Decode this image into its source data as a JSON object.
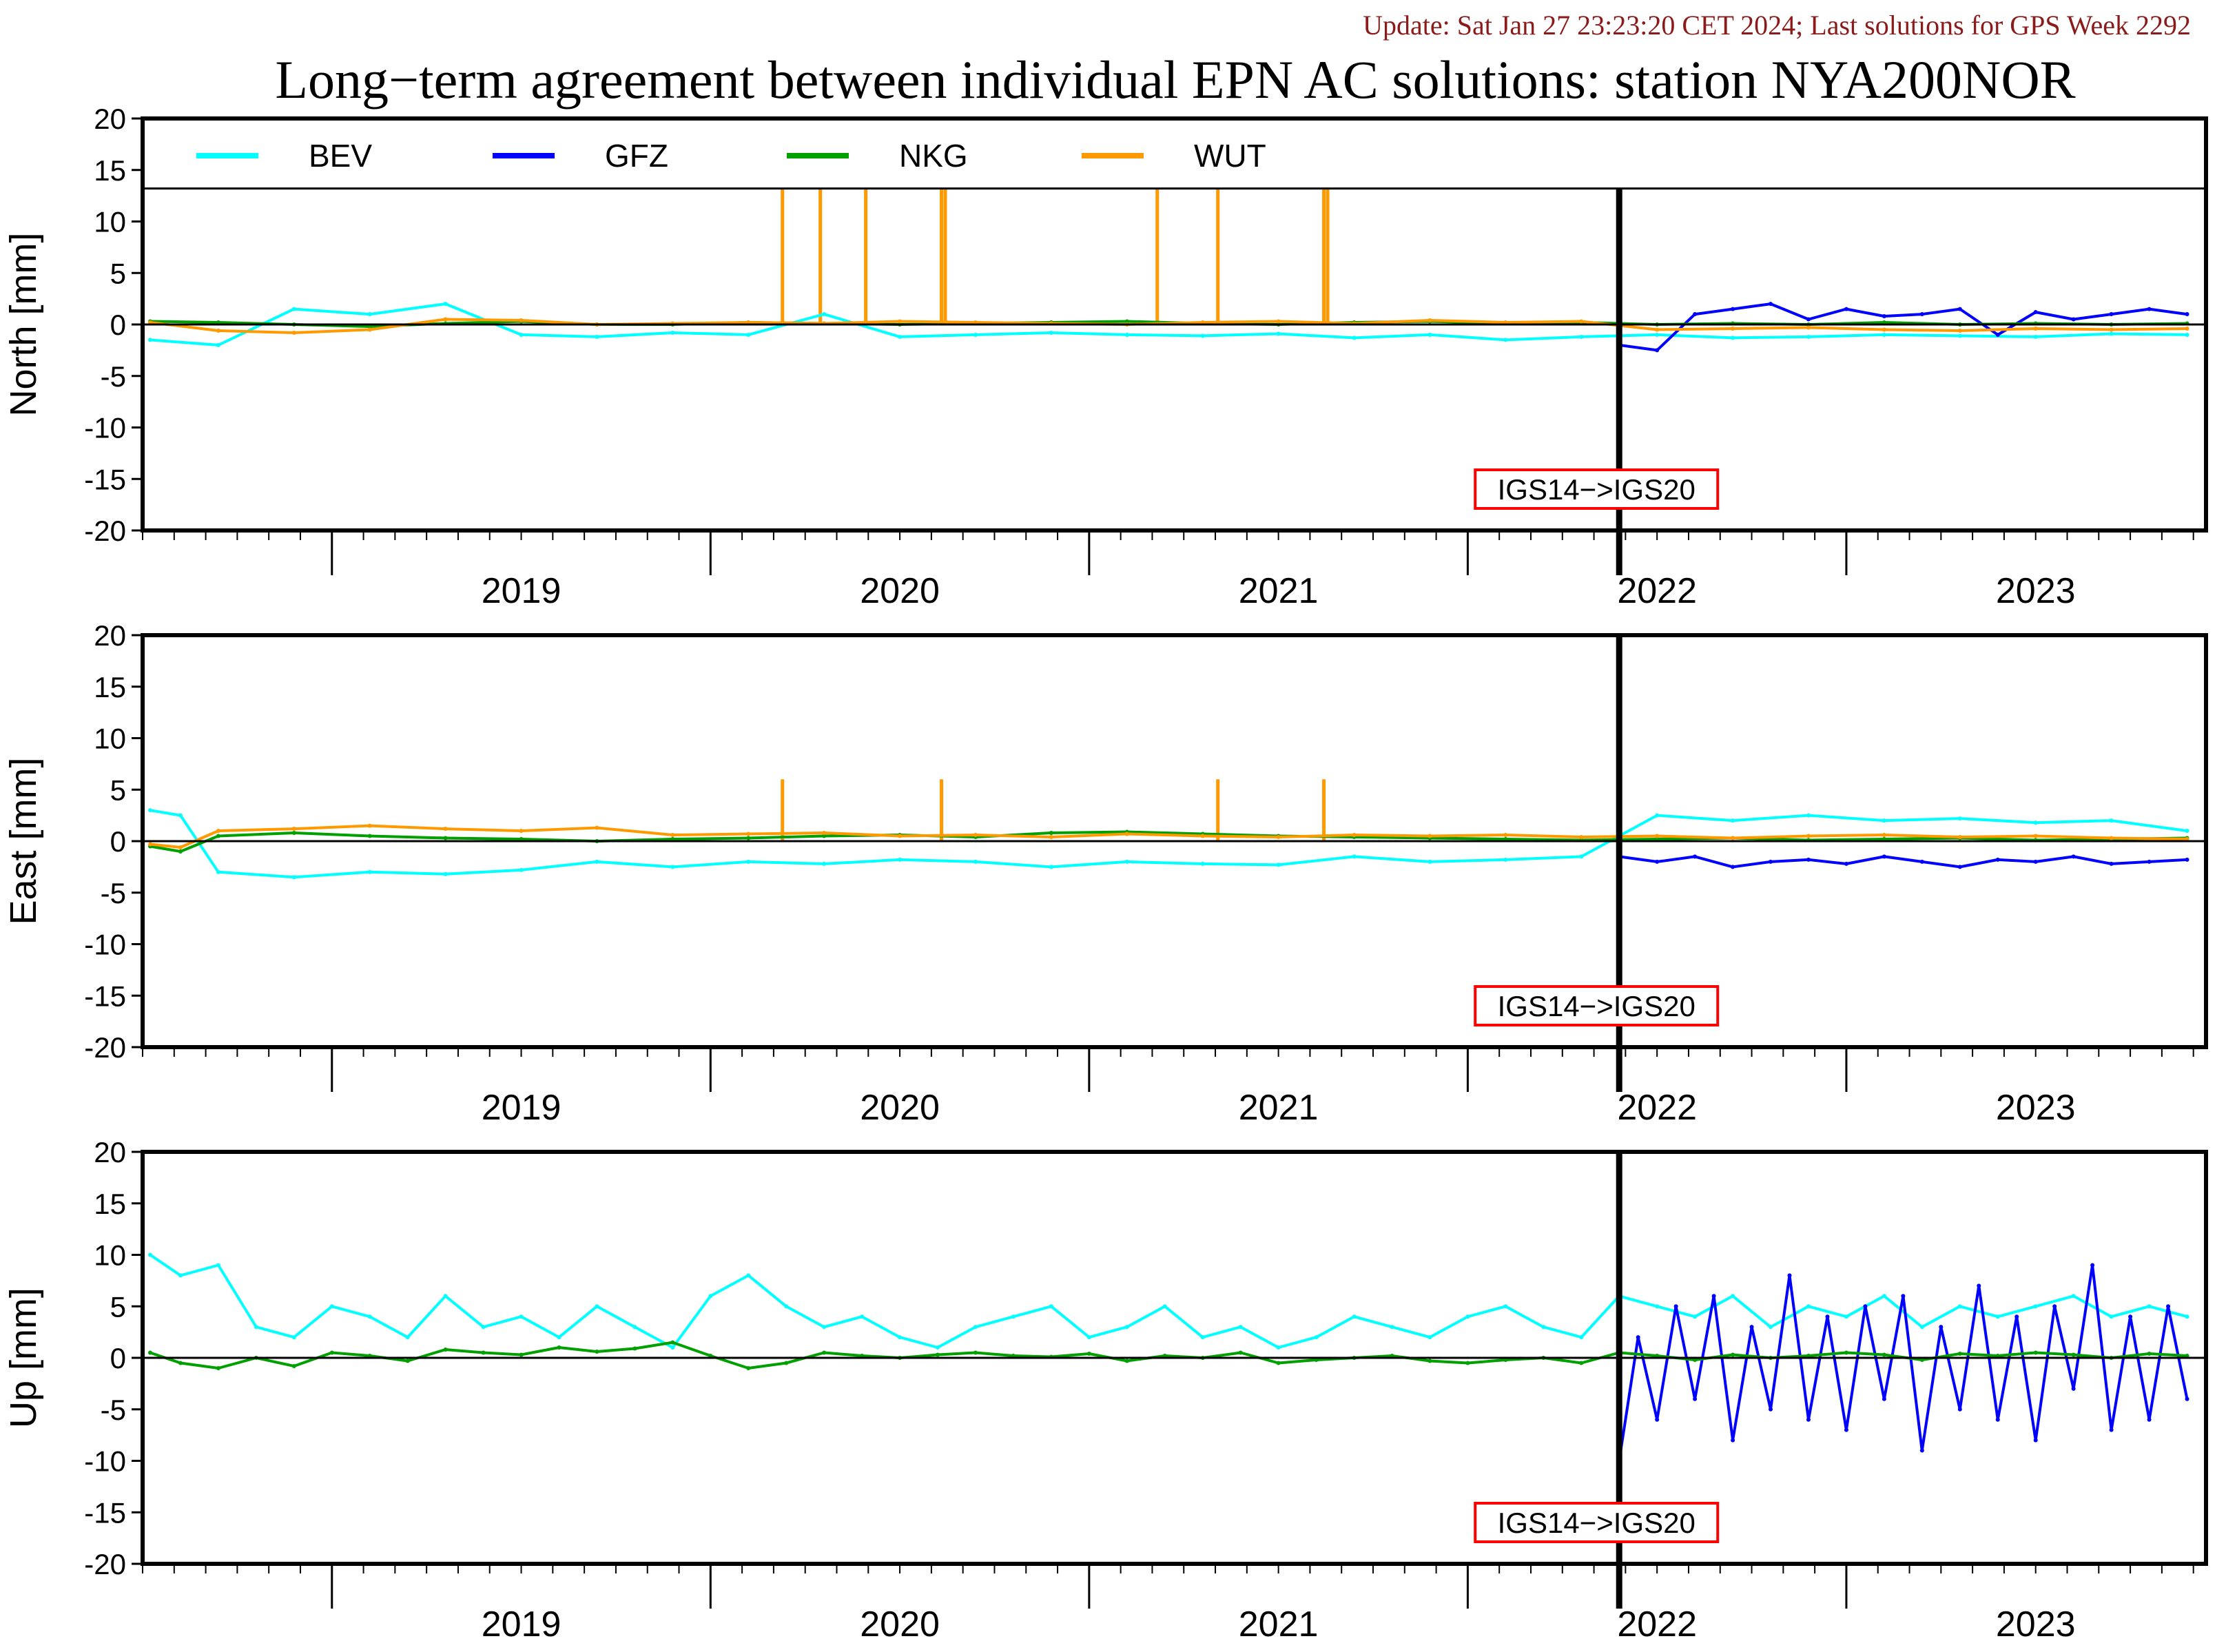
{
  "header": {
    "update_text": "Update: Sat Jan 27 23:23:20 CET 2024; Last solutions for GPS Week 2292",
    "title": "Long−term agreement between individual EPN AC solutions: station NYA200NOR"
  },
  "colors": {
    "BEV": "#00ffff",
    "GFZ": "#0000ff",
    "NKG": "#00a000",
    "WUT": "#ff9900",
    "annotation_border": "#ff0000",
    "update_text": "#8b1a1a"
  },
  "chart_data": [
    {
      "type": "line",
      "panel": "north",
      "ylabel": "North [mm]",
      "ylim": [
        -20,
        20
      ],
      "yticks": [
        20,
        15,
        10,
        5,
        0,
        -5,
        -10,
        -15,
        -20
      ],
      "xlim": [
        2018.5,
        2023.95
      ],
      "x_tick_labels": [
        "2019",
        "2020",
        "2021",
        "2022",
        "2023"
      ],
      "x_label_positions": [
        2019,
        2020,
        2021,
        2022,
        2023
      ],
      "reference_line": 0,
      "frame_change": {
        "x": 2022.4,
        "label": "IGS14−>IGS20"
      },
      "legend": {
        "placement": "top-inside",
        "entries": [
          "BEV",
          "GFZ",
          "NKG",
          "WUT"
        ]
      },
      "series": [
        {
          "name": "BEV",
          "x": [
            2018.52,
            2018.7,
            2018.9,
            2019.1,
            2019.3,
            2019.5,
            2019.7,
            2019.9,
            2020.1,
            2020.3,
            2020.5,
            2020.7,
            2020.9,
            2021.1,
            2021.3,
            2021.5,
            2021.7,
            2021.9,
            2022.1,
            2022.3,
            2022.5,
            2022.7,
            2022.9,
            2023.1,
            2023.3,
            2023.5,
            2023.7,
            2023.9
          ],
          "y": [
            -1.5,
            -2.0,
            1.5,
            1.0,
            2.0,
            -1.0,
            -1.2,
            -0.8,
            -1.0,
            1.0,
            -1.2,
            -1.0,
            -0.8,
            -1.0,
            -1.1,
            -0.9,
            -1.3,
            -1.0,
            -1.5,
            -1.2,
            -1.0,
            -1.3,
            -1.2,
            -1.0,
            -1.1,
            -1.2,
            -0.9,
            -1.0
          ]
        },
        {
          "name": "GFZ",
          "x": [
            2022.4,
            2022.5,
            2022.6,
            2022.7,
            2022.8,
            2022.9,
            2023.0,
            2023.1,
            2023.2,
            2023.3,
            2023.4,
            2023.5,
            2023.6,
            2023.7,
            2023.8,
            2023.9
          ],
          "y": [
            -2.0,
            -2.5,
            1.0,
            1.5,
            2.0,
            0.5,
            1.5,
            0.8,
            1.0,
            1.5,
            -1.0,
            1.2,
            0.5,
            1.0,
            1.5,
            1.0
          ]
        },
        {
          "name": "NKG",
          "x": [
            2018.52,
            2018.7,
            2018.9,
            2019.1,
            2019.3,
            2019.5,
            2019.7,
            2019.9,
            2020.1,
            2020.3,
            2020.5,
            2020.7,
            2020.9,
            2021.1,
            2021.3,
            2021.5,
            2021.7,
            2021.9,
            2022.1,
            2022.3,
            2022.5,
            2022.7,
            2022.9,
            2023.1,
            2023.3,
            2023.5,
            2023.7,
            2023.9
          ],
          "y": [
            0.3,
            0.2,
            0.0,
            -0.2,
            0.1,
            0.3,
            0.0,
            0.0,
            0.2,
            0.1,
            0.0,
            0.1,
            0.2,
            0.3,
            0.1,
            0.0,
            0.2,
            0.3,
            0.1,
            0.2,
            0.0,
            0.1,
            0.0,
            0.2,
            0.0,
            0.1,
            0.0,
            0.1
          ]
        },
        {
          "name": "WUT",
          "x": [
            2018.52,
            2018.7,
            2018.9,
            2019.1,
            2019.3,
            2019.5,
            2019.7,
            2019.9,
            2020.1,
            2020.3,
            2020.5,
            2020.7,
            2020.9,
            2021.1,
            2021.3,
            2021.5,
            2021.7,
            2021.9,
            2022.1,
            2022.3,
            2022.5,
            2022.7,
            2022.9,
            2023.1,
            2023.3,
            2023.5,
            2023.7,
            2023.9
          ],
          "y": [
            0.2,
            -0.6,
            -0.8,
            -0.5,
            0.5,
            0.4,
            0.0,
            0.1,
            0.2,
            0.1,
            0.3,
            0.2,
            0.1,
            0.0,
            0.2,
            0.3,
            0.1,
            0.4,
            0.2,
            0.3,
            -0.5,
            -0.4,
            -0.3,
            -0.5,
            -0.6,
            -0.4,
            -0.5,
            -0.4
          ]
        }
      ],
      "spikes": [
        {
          "series": "WUT",
          "x": [
            2020.19,
            2020.29,
            2020.41,
            2020.61,
            2020.62,
            2021.18,
            2021.34,
            2021.62,
            2021.63
          ],
          "top": 20
        }
      ]
    },
    {
      "type": "line",
      "panel": "east",
      "ylabel": "East [mm]",
      "ylim": [
        -20,
        20
      ],
      "yticks": [
        20,
        15,
        10,
        5,
        0,
        -5,
        -10,
        -15,
        -20
      ],
      "xlim": [
        2018.5,
        2023.95
      ],
      "x_tick_labels": [
        "2019",
        "2020",
        "2021",
        "2022",
        "2023"
      ],
      "x_label_positions": [
        2019,
        2020,
        2021,
        2022,
        2023
      ],
      "reference_line": 0,
      "frame_change": {
        "x": 2022.4,
        "label": "IGS14−>IGS20"
      },
      "series": [
        {
          "name": "BEV",
          "x": [
            2018.52,
            2018.6,
            2018.7,
            2018.9,
            2019.1,
            2019.3,
            2019.5,
            2019.7,
            2019.9,
            2020.1,
            2020.3,
            2020.5,
            2020.7,
            2020.9,
            2021.1,
            2021.3,
            2021.5,
            2021.7,
            2021.9,
            2022.1,
            2022.3,
            2022.5,
            2022.7,
            2022.9,
            2023.1,
            2023.3,
            2023.5,
            2023.7,
            2023.9
          ],
          "y": [
            3.0,
            2.5,
            -3.0,
            -3.5,
            -3.0,
            -3.2,
            -2.8,
            -2.0,
            -2.5,
            -2.0,
            -2.2,
            -1.8,
            -2.0,
            -2.5,
            -2.0,
            -2.2,
            -2.3,
            -1.5,
            -2.0,
            -1.8,
            -1.5,
            2.5,
            2.0,
            2.5,
            2.0,
            2.2,
            1.8,
            2.0,
            1.0
          ]
        },
        {
          "name": "GFZ",
          "x": [
            2022.4,
            2022.5,
            2022.6,
            2022.7,
            2022.8,
            2022.9,
            2023.0,
            2023.1,
            2023.2,
            2023.3,
            2023.4,
            2023.5,
            2023.6,
            2023.7,
            2023.8,
            2023.9
          ],
          "y": [
            -1.5,
            -2.0,
            -1.5,
            -2.5,
            -2.0,
            -1.8,
            -2.2,
            -1.5,
            -2.0,
            -2.5,
            -1.8,
            -2.0,
            -1.5,
            -2.2,
            -2.0,
            -1.8
          ]
        },
        {
          "name": "NKG",
          "x": [
            2018.52,
            2018.6,
            2018.7,
            2018.9,
            2019.1,
            2019.3,
            2019.5,
            2019.7,
            2019.9,
            2020.1,
            2020.3,
            2020.5,
            2020.7,
            2020.9,
            2021.1,
            2021.3,
            2021.5,
            2021.7,
            2021.9,
            2022.1,
            2022.3,
            2022.5,
            2022.7,
            2022.9,
            2023.1,
            2023.3,
            2023.5,
            2023.7,
            2023.9
          ],
          "y": [
            -0.5,
            -1.0,
            0.5,
            0.8,
            0.5,
            0.3,
            0.2,
            0.0,
            0.2,
            0.3,
            0.5,
            0.6,
            0.4,
            0.8,
            0.9,
            0.7,
            0.5,
            0.4,
            0.3,
            0.2,
            0.1,
            0.2,
            0.3,
            0.1,
            0.2,
            0.3,
            0.1,
            0.2,
            0.3
          ]
        },
        {
          "name": "WUT",
          "x": [
            2018.52,
            2018.6,
            2018.7,
            2018.9,
            2019.1,
            2019.3,
            2019.5,
            2019.7,
            2019.9,
            2020.1,
            2020.3,
            2020.5,
            2020.7,
            2020.9,
            2021.1,
            2021.3,
            2021.5,
            2021.7,
            2021.9,
            2022.1,
            2022.3,
            2022.5,
            2022.7,
            2022.9,
            2023.1,
            2023.3,
            2023.5,
            2023.7,
            2023.9
          ],
          "y": [
            -0.3,
            -0.6,
            1.0,
            1.2,
            1.5,
            1.2,
            1.0,
            1.3,
            0.6,
            0.7,
            0.8,
            0.5,
            0.6,
            0.4,
            0.7,
            0.5,
            0.4,
            0.6,
            0.5,
            0.6,
            0.4,
            0.5,
            0.3,
            0.5,
            0.6,
            0.4,
            0.5,
            0.3,
            0.2
          ]
        }
      ],
      "spikes": [
        {
          "series": "WUT",
          "x": [
            2020.19,
            2020.61,
            2021.34,
            2021.62
          ],
          "top": 6
        }
      ]
    },
    {
      "type": "line",
      "panel": "up",
      "ylabel": "Up [mm]",
      "ylim": [
        -20,
        20
      ],
      "yticks": [
        20,
        15,
        10,
        5,
        0,
        -5,
        -10,
        -15,
        -20
      ],
      "xlim": [
        2018.5,
        2023.95
      ],
      "x_tick_labels": [
        "2019",
        "2020",
        "2021",
        "2022",
        "2023"
      ],
      "x_label_positions": [
        2019,
        2020,
        2021,
        2022,
        2023
      ],
      "reference_line": 0,
      "frame_change": {
        "x": 2022.4,
        "label": "IGS14−>IGS20"
      },
      "series": [
        {
          "name": "BEV",
          "x": [
            2018.52,
            2018.6,
            2018.7,
            2018.8,
            2018.9,
            2019.0,
            2019.1,
            2019.2,
            2019.3,
            2019.4,
            2019.5,
            2019.6,
            2019.7,
            2019.8,
            2019.9,
            2020.0,
            2020.1,
            2020.2,
            2020.3,
            2020.4,
            2020.5,
            2020.6,
            2020.7,
            2020.8,
            2020.9,
            2021.0,
            2021.1,
            2021.2,
            2021.3,
            2021.4,
            2021.5,
            2021.6,
            2021.7,
            2021.8,
            2021.9,
            2022.0,
            2022.1,
            2022.2,
            2022.3,
            2022.4,
            2022.5,
            2022.6,
            2022.7,
            2022.8,
            2022.9,
            2023.0,
            2023.1,
            2023.2,
            2023.3,
            2023.4,
            2023.5,
            2023.6,
            2023.7,
            2023.8,
            2023.9
          ],
          "y": [
            10,
            8,
            9,
            3,
            2,
            5,
            4,
            2,
            6,
            3,
            4,
            2,
            5,
            3,
            1,
            6,
            8,
            5,
            3,
            4,
            2,
            1,
            3,
            4,
            5,
            2,
            3,
            5,
            2,
            3,
            1,
            2,
            4,
            3,
            2,
            4,
            5,
            3,
            2,
            6,
            5,
            4,
            6,
            3,
            5,
            4,
            6,
            3,
            5,
            4,
            5,
            6,
            4,
            5,
            4
          ]
        },
        {
          "name": "GFZ",
          "x": [
            2022.4,
            2022.45,
            2022.5,
            2022.55,
            2022.6,
            2022.65,
            2022.7,
            2022.75,
            2022.8,
            2022.85,
            2022.9,
            2022.95,
            2023.0,
            2023.05,
            2023.1,
            2023.15,
            2023.2,
            2023.25,
            2023.3,
            2023.35,
            2023.4,
            2023.45,
            2023.5,
            2023.55,
            2023.6,
            2023.65,
            2023.7,
            2023.75,
            2023.8,
            2023.85,
            2023.9
          ],
          "y": [
            -10,
            2,
            -6,
            5,
            -4,
            6,
            -8,
            3,
            -5,
            8,
            -6,
            4,
            -7,
            5,
            -4,
            6,
            -9,
            3,
            -5,
            7,
            -6,
            4,
            -8,
            5,
            -3,
            9,
            -7,
            4,
            -6,
            5,
            -4
          ]
        },
        {
          "name": "NKG",
          "x": [
            2018.52,
            2018.6,
            2018.7,
            2018.8,
            2018.9,
            2019.0,
            2019.1,
            2019.2,
            2019.3,
            2019.4,
            2019.5,
            2019.6,
            2019.7,
            2019.8,
            2019.9,
            2020.0,
            2020.1,
            2020.2,
            2020.3,
            2020.4,
            2020.5,
            2020.6,
            2020.7,
            2020.8,
            2020.9,
            2021.0,
            2021.1,
            2021.2,
            2021.3,
            2021.4,
            2021.5,
            2021.6,
            2021.7,
            2021.8,
            2021.9,
            2022.0,
            2022.1,
            2022.2,
            2022.3,
            2022.4,
            2022.5,
            2022.6,
            2022.7,
            2022.8,
            2022.9,
            2023.0,
            2023.1,
            2023.2,
            2023.3,
            2023.4,
            2023.5,
            2023.6,
            2023.7,
            2023.8,
            2023.9
          ],
          "y": [
            0.5,
            -0.5,
            -1.0,
            0.0,
            -0.8,
            0.5,
            0.2,
            -0.3,
            0.8,
            0.5,
            0.3,
            1.0,
            0.6,
            0.9,
            1.5,
            0.2,
            -1.0,
            -0.5,
            0.5,
            0.2,
            0.0,
            0.3,
            0.5,
            0.2,
            0.1,
            0.4,
            -0.3,
            0.2,
            0.0,
            0.5,
            -0.5,
            -0.2,
            0.0,
            0.2,
            -0.3,
            -0.5,
            -0.2,
            0.0,
            -0.5,
            0.5,
            0.2,
            -0.2,
            0.3,
            0.0,
            0.2,
            0.5,
            0.3,
            -0.2,
            0.4,
            0.2,
            0.5,
            0.3,
            0.0,
            0.4,
            0.2
          ]
        }
      ]
    }
  ]
}
